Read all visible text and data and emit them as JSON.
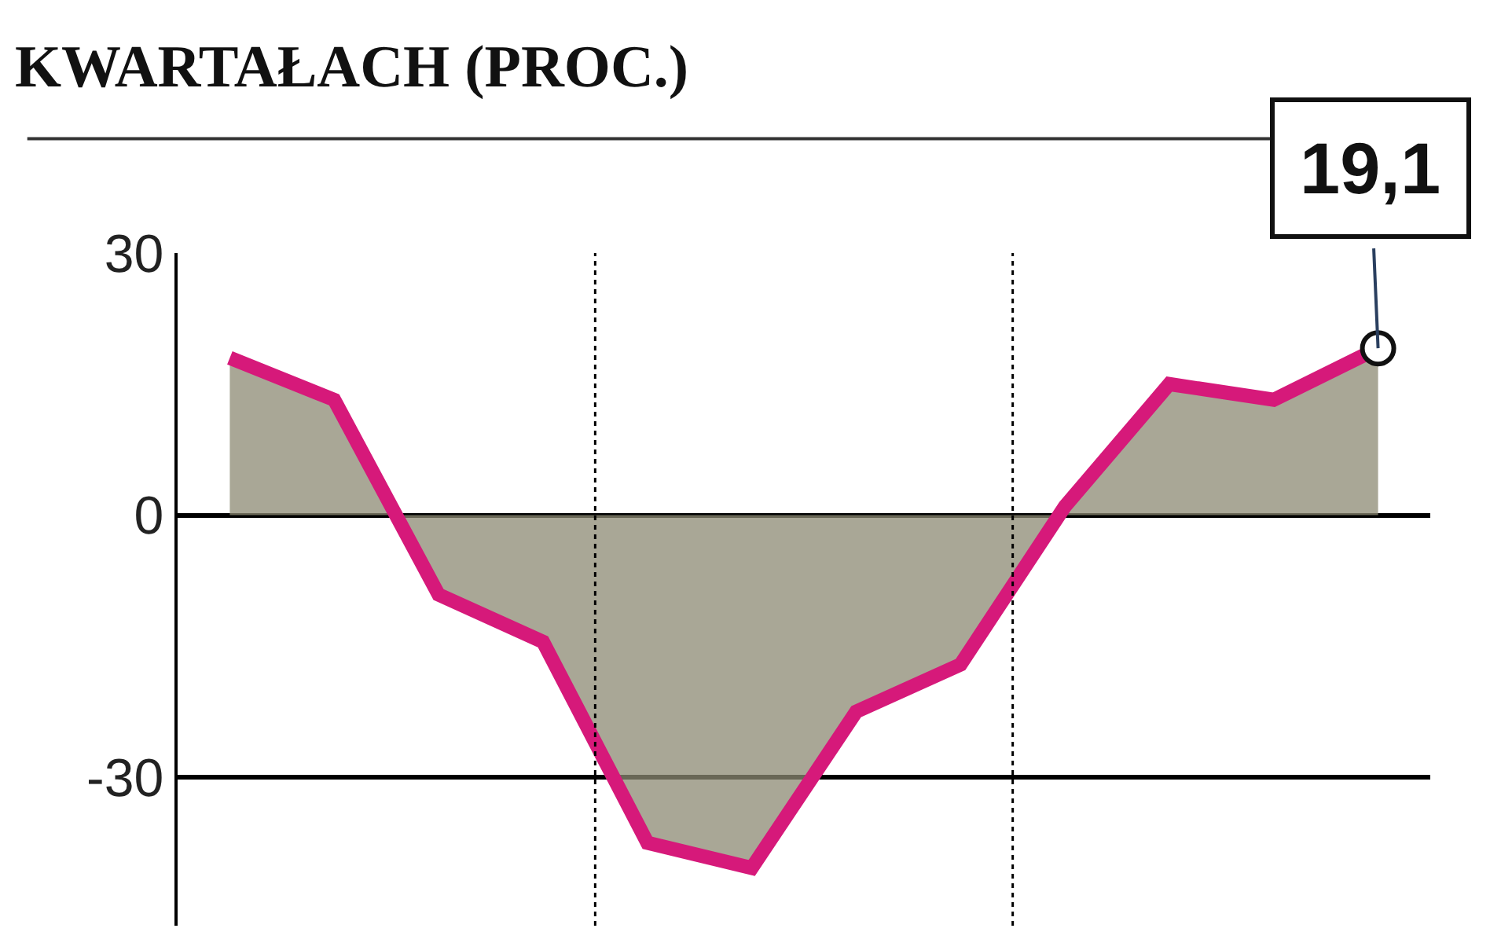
{
  "chart_data": {
    "type": "area",
    "title": "KWARTAŁACH (PROC.)",
    "categories": [
      null,
      null,
      null,
      null,
      null,
      null,
      null,
      null,
      null,
      null,
      null,
      null
    ],
    "series": [
      {
        "color": "#d6197a",
        "values": [
          18,
          13.2,
          -9.1,
          -14.5,
          -37.5,
          -40.4,
          -22.5,
          -17.1,
          1,
          15,
          13.2,
          19.1
        ]
      }
    ],
    "ylim": [
      -47,
      30
    ],
    "yticks": [
      -30,
      0,
      30
    ],
    "grid": "y",
    "tick_labels": "y",
    "annotations": [
      {
        "text": "19,1",
        "y": 19.1
      }
    ]
  }
}
